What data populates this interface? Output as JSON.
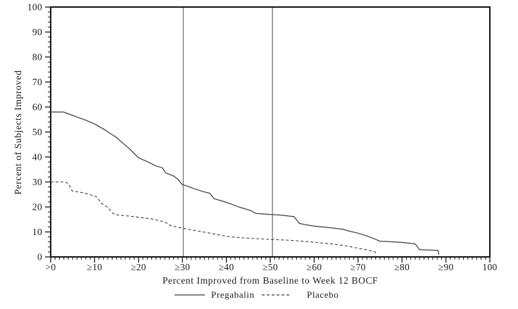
{
  "figure": {
    "background": "#ffffff",
    "axis_color": "#161616",
    "text_color": "#1c1c1c",
    "pregabalin_color": "#3f3f3f",
    "placebo_color": "#3f3f3f",
    "ref_line_color": "#7d7d7d"
  },
  "chart_data": {
    "type": "line",
    "title": "",
    "xlabel": "Percent Improved from Baseline to Week 12 BOCF",
    "ylabel": "Percent of Subjects Improved",
    "xlim": [
      0,
      100
    ],
    "ylim": [
      0,
      100
    ],
    "grid": "off",
    "legend_position": "bottom",
    "x_tick_values": [
      0,
      10,
      20,
      30,
      40,
      50,
      60,
      70,
      80,
      90,
      100
    ],
    "x_tick_labels": [
      ">0",
      "≥10",
      "≥20",
      "≥30",
      "≥40",
      "≥50",
      "≥60",
      "≥70",
      "≥80",
      "≥90",
      "100"
    ],
    "y_tick_values": [
      0,
      10,
      20,
      30,
      40,
      50,
      60,
      70,
      80,
      90,
      100
    ],
    "y_tick_labels": [
      "0",
      "10",
      "20",
      "30",
      "40",
      "50",
      "60",
      "70",
      "80",
      "90",
      "100"
    ],
    "x_minor_step": 1,
    "y_minor_step": 2,
    "reference_lines_x": [
      30.2,
      50.5
    ],
    "legend": [
      {
        "name": "Pregabalin",
        "style": "solid"
      },
      {
        "name": "Placebo",
        "style": "dashed"
      }
    ],
    "series": [
      {
        "name": "Pregabalin",
        "style": "solid",
        "points": [
          [
            0,
            58
          ],
          [
            2.9,
            58
          ],
          [
            4,
            57.3
          ],
          [
            6,
            56
          ],
          [
            8,
            54.7
          ],
          [
            10,
            53.2
          ],
          [
            12,
            51.2
          ],
          [
            14,
            48.9
          ],
          [
            15,
            47.8
          ],
          [
            16,
            46.2
          ],
          [
            17,
            44.7
          ],
          [
            18,
            43.2
          ],
          [
            19,
            41.4
          ],
          [
            20,
            39.7
          ],
          [
            22,
            38.1
          ],
          [
            24,
            36.4
          ],
          [
            25.4,
            35.7
          ],
          [
            26.2,
            33.6
          ],
          [
            28,
            32.4
          ],
          [
            29,
            31
          ],
          [
            30,
            28.9
          ],
          [
            31,
            28.4
          ],
          [
            33,
            27.1
          ],
          [
            35,
            26
          ],
          [
            36.2,
            25.5
          ],
          [
            37.2,
            23.3
          ],
          [
            39,
            22.4
          ],
          [
            41,
            21.2
          ],
          [
            43,
            19.9
          ],
          [
            45.5,
            18.6
          ],
          [
            46.7,
            17.4
          ],
          [
            49,
            17.1
          ],
          [
            52,
            16.8
          ],
          [
            55.4,
            16.1
          ],
          [
            56.6,
            13.4
          ],
          [
            58,
            12.9
          ],
          [
            60,
            12.3
          ],
          [
            63,
            11.8
          ],
          [
            65,
            11.4
          ],
          [
            66.5,
            11.1
          ],
          [
            68,
            10.3
          ],
          [
            70,
            9.5
          ],
          [
            72,
            8.4
          ],
          [
            74,
            7
          ],
          [
            74.9,
            6.3
          ],
          [
            77,
            6.1
          ],
          [
            80,
            5.8
          ],
          [
            83,
            5.2
          ],
          [
            84,
            2.9
          ],
          [
            87,
            2.7
          ],
          [
            88.2,
            2.6
          ],
          [
            88.4,
            0.9
          ]
        ]
      },
      {
        "name": "Placebo",
        "style": "dashed",
        "points": [
          [
            0,
            30
          ],
          [
            3.2,
            30
          ],
          [
            4,
            29.4
          ],
          [
            4.9,
            26.4
          ],
          [
            7,
            25.8
          ],
          [
            9,
            24.9
          ],
          [
            10.5,
            24
          ],
          [
            11.5,
            21.5
          ],
          [
            13,
            19.8
          ],
          [
            14,
            17.7
          ],
          [
            14.7,
            16.9
          ],
          [
            17,
            16.5
          ],
          [
            20,
            15.9
          ],
          [
            23,
            15.2
          ],
          [
            26,
            14
          ],
          [
            27.3,
            12.5
          ],
          [
            30,
            11.5
          ],
          [
            33,
            10.5
          ],
          [
            36,
            9.6
          ],
          [
            39,
            8.6
          ],
          [
            41,
            8
          ],
          [
            44,
            7.6
          ],
          [
            47,
            7.3
          ],
          [
            50,
            7
          ],
          [
            54,
            6.7
          ],
          [
            58,
            6.2
          ],
          [
            61,
            5.7
          ],
          [
            64,
            5.2
          ],
          [
            67,
            4.5
          ],
          [
            70,
            3.5
          ],
          [
            72,
            2.8
          ],
          [
            73.8,
            2.1
          ],
          [
            74.2,
            1.2
          ]
        ]
      }
    ]
  }
}
